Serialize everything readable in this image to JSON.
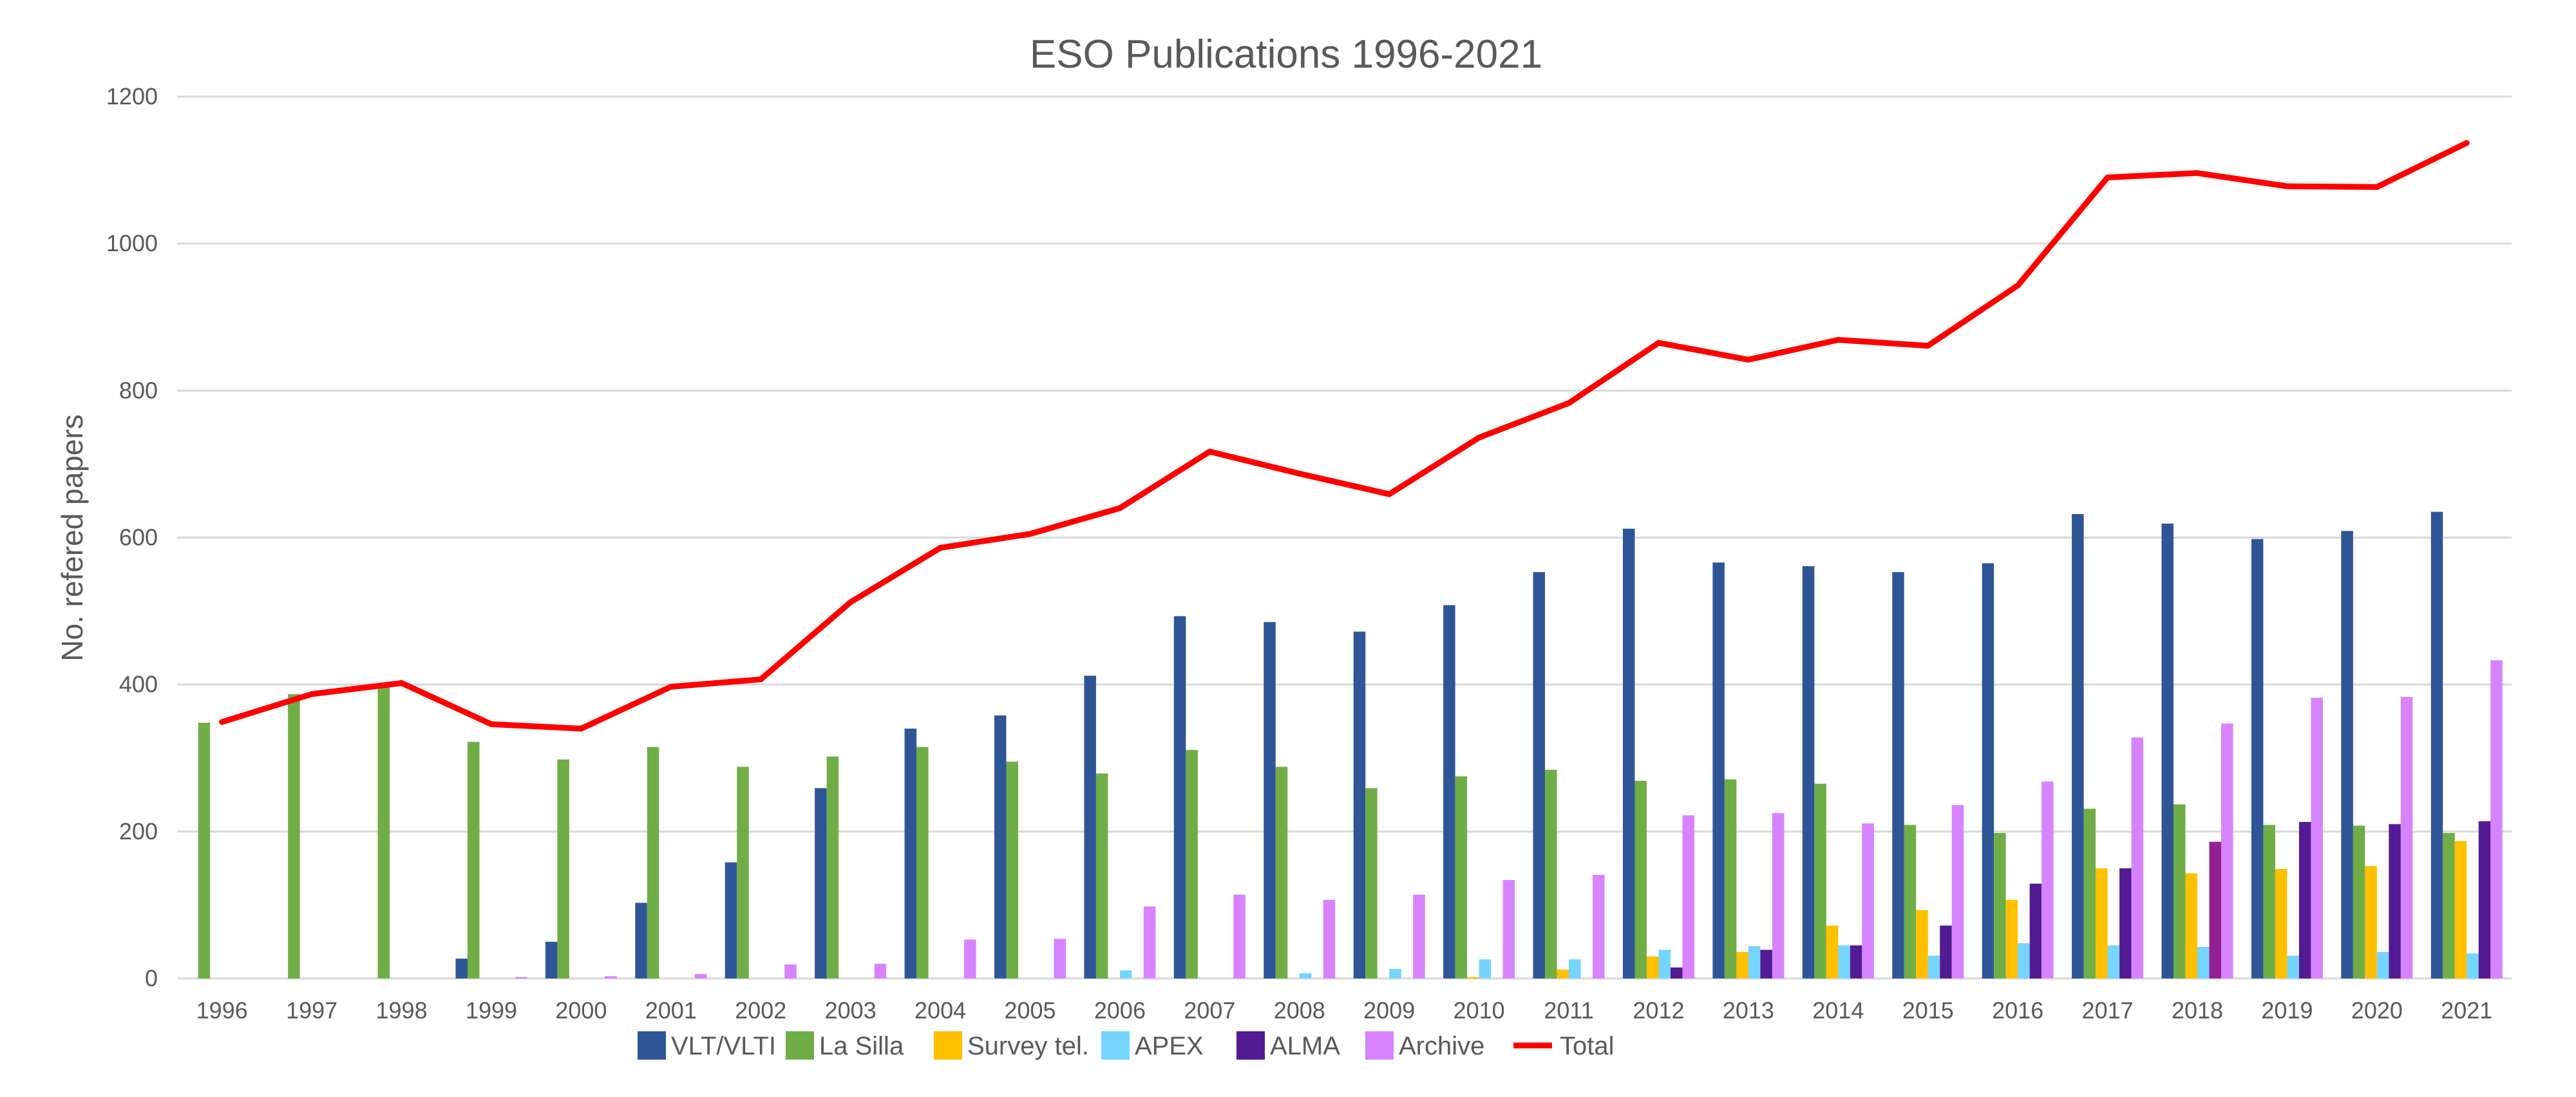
{
  "chart_data": {
    "type": "bar",
    "title": "ESO Publications 1996-2021",
    "xlabel": "",
    "ylabel": "No. refered papers",
    "ylim": [
      0,
      1200
    ],
    "yticks": [
      0,
      200,
      400,
      600,
      800,
      1000,
      1200
    ],
    "grid": true,
    "legend_position": "bottom",
    "categories": [
      "1996",
      "1997",
      "1998",
      "1999",
      "2000",
      "2001",
      "2002",
      "2003",
      "2004",
      "2005",
      "2006",
      "2007",
      "2008",
      "2009",
      "2010",
      "2011",
      "2012",
      "2013",
      "2014",
      "2015",
      "2016",
      "2017",
      "2018",
      "2019",
      "2020",
      "2021"
    ],
    "series": [
      {
        "name": "VLT/VLTI",
        "kind": "bar",
        "color": "#2F5597",
        "values": [
          0,
          0,
          0,
          27,
          50,
          103,
          158,
          259,
          340,
          358,
          412,
          493,
          485,
          472,
          508,
          553,
          612,
          566,
          561,
          553,
          565,
          632,
          619,
          598,
          609,
          635
        ]
      },
      {
        "name": "La Silla",
        "kind": "bar",
        "color": "#70AD47",
        "values": [
          348,
          387,
          399,
          322,
          298,
          315,
          288,
          302,
          315,
          295,
          279,
          311,
          288,
          259,
          275,
          284,
          269,
          271,
          265,
          209,
          198,
          231,
          237,
          209,
          208,
          198
        ]
      },
      {
        "name": "Survey tel.",
        "kind": "bar",
        "color": "#FFC000",
        "values": [
          0,
          0,
          0,
          0,
          0,
          0,
          0,
          0,
          0,
          0,
          0,
          0,
          0,
          0,
          2,
          12,
          30,
          36,
          72,
          93,
          107,
          150,
          143,
          149,
          153,
          187
        ]
      },
      {
        "name": "APEX",
        "kind": "bar",
        "color": "#75D5FF",
        "values": [
          0,
          0,
          0,
          0,
          0,
          0,
          0,
          0,
          0,
          0,
          11,
          0,
          7,
          13,
          26,
          26,
          39,
          44,
          45,
          31,
          48,
          45,
          43,
          31,
          36,
          34
        ]
      },
      {
        "name": "ALMA",
        "kind": "bar",
        "color": "#521B93",
        "point_colors": {
          "2018": "#942193"
        },
        "values": [
          0,
          0,
          0,
          0,
          0,
          0,
          0,
          0,
          0,
          0,
          0,
          0,
          0,
          0,
          0,
          0,
          15,
          39,
          45,
          72,
          129,
          150,
          186,
          213,
          210,
          214
        ]
      },
      {
        "name": "Archive",
        "kind": "bar",
        "color": "#D783FF",
        "values": [
          0,
          0,
          0,
          2,
          3,
          6,
          19,
          20,
          53,
          54,
          98,
          114,
          107,
          114,
          134,
          141,
          222,
          225,
          211,
          236,
          268,
          328,
          347,
          382,
          383,
          433
        ]
      },
      {
        "name": "Total",
        "kind": "line",
        "color": "#FF0000",
        "values": [
          349,
          387,
          402,
          346,
          340,
          397,
          407,
          512,
          586,
          605,
          640,
          717,
          687,
          659,
          736,
          783,
          865,
          842,
          869,
          861,
          943,
          1090,
          1096,
          1078,
          1077,
          1137
        ]
      }
    ]
  }
}
